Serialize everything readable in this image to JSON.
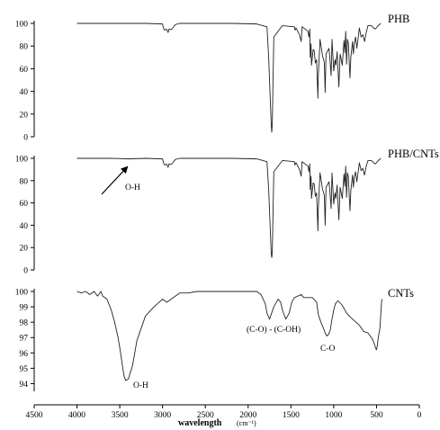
{
  "chart_data": {
    "type": "line",
    "xlabel": "wavelength",
    "xunit": "(cm⁻¹)",
    "x_axis": {
      "min": 0,
      "max": 4500,
      "reversed": true,
      "ticks": [
        4500,
        4000,
        3500,
        3000,
        2500,
        2000,
        1500,
        1000,
        500,
        0
      ],
      "tick_labels": [
        "4500",
        "4000",
        "3500",
        "3000",
        "2500",
        "2000",
        "1500",
        "1000",
        "500",
        "0"
      ]
    },
    "grid": false,
    "panels": [
      {
        "name": "PHB",
        "ylim": [
          0,
          100
        ],
        "yticks": [
          0,
          20,
          40,
          60,
          80,
          100
        ],
        "ytick_labels": [
          "0",
          "20",
          "40",
          "60",
          "80",
          "100"
        ],
        "x": [
          4000,
          3600,
          3200,
          3000,
          2990,
          2975,
          2955,
          2935,
          2925,
          2900,
          2880,
          2850,
          2800,
          2600,
          2200,
          1900,
          1780,
          1760,
          1730,
          1724,
          1718,
          1700,
          1600,
          1460,
          1452,
          1440,
          1400,
          1380,
          1370,
          1300,
          1290,
          1280,
          1275,
          1265,
          1260,
          1240,
          1228,
          1215,
          1200,
          1185,
          1180,
          1160,
          1130,
          1110,
          1100,
          1090,
          1055,
          1045,
          1030,
          1020,
          1000,
          985,
          975,
          960,
          940,
          925,
          900,
          880,
          870,
          860,
          850,
          840,
          830,
          810,
          800,
          780,
          770,
          760,
          745,
          730,
          700,
          680,
          660,
          640,
          620,
          600,
          560,
          520,
          500,
          480,
          450
        ],
        "y": [
          100,
          100,
          100,
          99.5,
          96,
          94,
          95,
          92,
          95,
          94.5,
          96,
          99,
          100,
          100,
          100,
          99.5,
          97,
          70,
          10,
          4,
          12,
          88,
          98,
          97,
          94,
          96,
          90,
          84,
          97,
          93,
          88,
          95,
          70,
          82,
          63,
          77,
          76,
          65,
          68,
          34,
          54,
          86,
          71,
          66,
          39,
          73,
          78,
          69,
          54,
          86,
          58,
          68,
          63,
          75,
          44,
          73,
          63,
          85,
          74,
          93,
          64,
          86,
          83,
          52,
          70,
          84,
          73,
          82,
          88,
          78,
          96,
          88,
          90,
          84,
          92,
          98,
          98,
          95,
          96,
          98,
          100
        ]
      },
      {
        "name": "PHB/CNTs",
        "ylim": [
          0,
          100
        ],
        "yticks": [
          0,
          20,
          40,
          60,
          80,
          100
        ],
        "ytick_labels": [
          "0",
          "20",
          "40",
          "60",
          "80",
          "100"
        ],
        "x": [
          4000,
          3600,
          3400,
          3200,
          3000,
          2990,
          2975,
          2955,
          2935,
          2925,
          2900,
          2880,
          2850,
          2800,
          2600,
          2200,
          1900,
          1780,
          1760,
          1730,
          1724,
          1718,
          1700,
          1600,
          1460,
          1452,
          1440,
          1400,
          1380,
          1370,
          1300,
          1290,
          1280,
          1275,
          1265,
          1260,
          1240,
          1228,
          1215,
          1200,
          1185,
          1180,
          1160,
          1130,
          1110,
          1100,
          1090,
          1055,
          1045,
          1030,
          1020,
          1000,
          985,
          975,
          960,
          940,
          925,
          900,
          880,
          870,
          860,
          850,
          840,
          830,
          810,
          800,
          780,
          770,
          760,
          745,
          730,
          700,
          680,
          660,
          640,
          620,
          600,
          560,
          520,
          500,
          480,
          450
        ],
        "y": [
          100,
          100,
          99.5,
          100,
          99.5,
          96,
          94,
          95,
          92,
          95,
          94.5,
          96,
          99,
          100,
          100,
          100,
          99.5,
          97,
          72,
          14,
          11,
          16,
          88,
          98,
          97,
          94,
          96,
          90,
          84,
          97,
          93,
          88,
          95,
          72,
          84,
          64,
          78,
          77,
          66,
          69,
          35,
          55,
          87,
          72,
          67,
          40,
          74,
          79,
          70,
          55,
          87,
          59,
          69,
          64,
          76,
          45,
          74,
          64,
          86,
          75,
          93,
          65,
          87,
          84,
          53,
          71,
          85,
          74,
          83,
          88,
          79,
          96,
          89,
          91,
          85,
          93,
          98,
          98,
          95,
          96,
          98,
          100
        ]
      },
      {
        "name": "CNTs",
        "ylim": [
          93.5,
          100
        ],
        "yticks": [
          94,
          95,
          96,
          97,
          98,
          99,
          100
        ],
        "ytick_labels": [
          "94",
          "95",
          "96",
          "97",
          "98",
          "99",
          "100"
        ],
        "x": [
          4000,
          3950,
          3900,
          3850,
          3800,
          3760,
          3720,
          3700,
          3650,
          3600,
          3560,
          3520,
          3490,
          3470,
          3450,
          3430,
          3400,
          3350,
          3300,
          3200,
          3100,
          3000,
          2950,
          2900,
          2850,
          2800,
          2700,
          2600,
          2400,
          2200,
          2000,
          1900,
          1850,
          1800,
          1780,
          1750,
          1700,
          1650,
          1620,
          1600,
          1560,
          1520,
          1490,
          1460,
          1420,
          1380,
          1350,
          1300,
          1250,
          1200,
          1180,
          1150,
          1120,
          1100,
          1080,
          1060,
          1040,
          1020,
          1000,
          980,
          950,
          900,
          850,
          800,
          760,
          700,
          650,
          600,
          560,
          540,
          520,
          510,
          500,
          490,
          480,
          470,
          460,
          450,
          440,
          430
        ],
        "y": [
          100,
          99.9,
          100,
          99.8,
          100,
          99.7,
          100,
          99.7,
          99.5,
          98.8,
          98,
          97,
          96,
          95.2,
          94.5,
          94.2,
          94.3,
          95.2,
          96.8,
          98.4,
          99,
          99.5,
          99.3,
          99.5,
          99.7,
          99.9,
          99.9,
          100,
          100,
          100,
          100,
          100,
          99.8,
          99.2,
          98.6,
          98.2,
          99,
          99.5,
          99.3,
          98.8,
          98.2,
          98.6,
          99.3,
          99.6,
          99.7,
          99.8,
          99.6,
          99.6,
          99.6,
          99.3,
          98.5,
          98,
          97.6,
          97.3,
          97.1,
          97.2,
          97.5,
          98.2,
          98.8,
          99.2,
          99.4,
          99.1,
          98.6,
          98.3,
          98.1,
          97.8,
          97.4,
          97.3,
          97,
          96.8,
          96.5,
          96.3,
          96.2,
          96.5,
          97,
          97.3,
          97.6,
          98.5,
          99.4,
          99.5
        ]
      }
    ],
    "annotations": [
      {
        "panel": "PHB/CNTs",
        "text": "O-H",
        "arrow": true
      },
      {
        "panel": "CNTs",
        "text": "O-H"
      },
      {
        "panel": "CNTs",
        "text": "(C-O) - (C-OH)"
      },
      {
        "panel": "CNTs",
        "text": "C-O"
      }
    ]
  }
}
